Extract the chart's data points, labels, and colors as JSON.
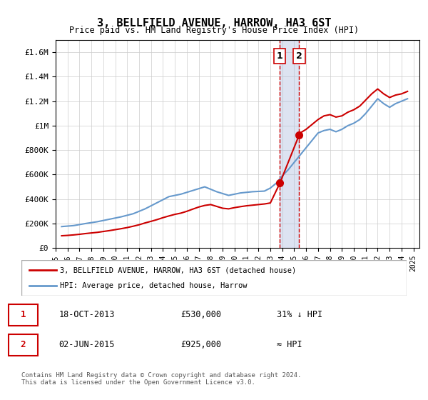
{
  "title": "3, BELLFIELD AVENUE, HARROW, HA3 6ST",
  "subtitle": "Price paid vs. HM Land Registry's House Price Index (HPI)",
  "ylabel_ticks": [
    "£0",
    "£200K",
    "£400K",
    "£600K",
    "£800K",
    "£1M",
    "£1.2M",
    "£1.4M",
    "£1.6M"
  ],
  "ylabel_values": [
    0,
    200000,
    400000,
    600000,
    800000,
    1000000,
    1200000,
    1400000,
    1600000
  ],
  "ylim": [
    0,
    1700000
  ],
  "xlim_start": 1995.0,
  "xlim_end": 2025.5,
  "xticks": [
    1995,
    1996,
    1997,
    1998,
    1999,
    2000,
    2001,
    2002,
    2003,
    2004,
    2005,
    2006,
    2007,
    2008,
    2009,
    2010,
    2011,
    2012,
    2013,
    2014,
    2015,
    2016,
    2017,
    2018,
    2019,
    2020,
    2021,
    2022,
    2023,
    2024,
    2025
  ],
  "hpi_color": "#6699cc",
  "price_color": "#cc0000",
  "marker_color": "#cc0000",
  "vline_color": "#cc0000",
  "vline_style": "dashed",
  "shade_color": "#aabbdd",
  "event1_x": 2013.8,
  "event2_x": 2015.42,
  "event1_price": 530000,
  "event2_price": 925000,
  "legend_label_price": "3, BELLFIELD AVENUE, HARROW, HA3 6ST (detached house)",
  "legend_label_hpi": "HPI: Average price, detached house, Harrow",
  "table_row1": [
    "1",
    "18-OCT-2013",
    "£530,000",
    "31% ↓ HPI"
  ],
  "table_row2": [
    "2",
    "02-JUN-2015",
    "£925,000",
    "≈ HPI"
  ],
  "footer": "Contains HM Land Registry data © Crown copyright and database right 2024.\nThis data is licensed under the Open Government Licence v3.0.",
  "hpi_data": {
    "years": [
      1995.5,
      1996.5,
      1997.5,
      1998.5,
      1999.5,
      2000.5,
      2001.5,
      2002.5,
      2003.5,
      2004.5,
      2005.5,
      2006.5,
      2007.5,
      2008.5,
      2009.5,
      2010.5,
      2011.5,
      2012.5,
      2013.0,
      2013.5,
      2014.0,
      2014.5,
      2015.0,
      2015.5,
      2016.0,
      2016.5,
      2017.0,
      2017.5,
      2018.0,
      2018.5,
      2019.0,
      2019.5,
      2020.0,
      2020.5,
      2021.0,
      2021.5,
      2022.0,
      2022.5,
      2023.0,
      2023.5,
      2024.0,
      2024.5
    ],
    "values": [
      175000,
      183000,
      200000,
      215000,
      235000,
      255000,
      280000,
      320000,
      370000,
      420000,
      440000,
      470000,
      500000,
      460000,
      430000,
      450000,
      460000,
      465000,
      490000,
      530000,
      590000,
      640000,
      700000,
      760000,
      820000,
      880000,
      940000,
      960000,
      970000,
      950000,
      970000,
      1000000,
      1020000,
      1050000,
      1100000,
      1160000,
      1220000,
      1180000,
      1150000,
      1180000,
      1200000,
      1220000
    ]
  },
  "price_data": {
    "years": [
      1995.5,
      1996.0,
      1996.5,
      1997.0,
      1997.5,
      1998.0,
      1998.5,
      1999.0,
      1999.5,
      2000.0,
      2000.5,
      2001.0,
      2001.5,
      2002.0,
      2002.5,
      2003.0,
      2003.5,
      2004.0,
      2004.5,
      2005.0,
      2005.5,
      2006.0,
      2006.5,
      2007.0,
      2007.5,
      2008.0,
      2008.5,
      2009.0,
      2009.5,
      2010.0,
      2010.5,
      2011.0,
      2011.5,
      2012.0,
      2012.5,
      2013.0,
      2013.8,
      2015.42,
      2015.5,
      2016.0,
      2016.5,
      2017.0,
      2017.5,
      2018.0,
      2018.5,
      2019.0,
      2019.5,
      2020.0,
      2020.5,
      2021.0,
      2021.5,
      2022.0,
      2022.5,
      2023.0,
      2023.5,
      2024.0,
      2024.5
    ],
    "values": [
      100000,
      103000,
      107000,
      112000,
      118000,
      123000,
      128000,
      135000,
      142000,
      150000,
      158000,
      167000,
      178000,
      190000,
      205000,
      218000,
      232000,
      248000,
      262000,
      275000,
      285000,
      300000,
      318000,
      335000,
      348000,
      355000,
      340000,
      325000,
      320000,
      330000,
      338000,
      345000,
      350000,
      355000,
      360000,
      368000,
      530000,
      925000,
      940000,
      970000,
      1010000,
      1050000,
      1080000,
      1090000,
      1070000,
      1080000,
      1110000,
      1130000,
      1160000,
      1210000,
      1260000,
      1300000,
      1260000,
      1230000,
      1250000,
      1260000,
      1280000
    ]
  }
}
